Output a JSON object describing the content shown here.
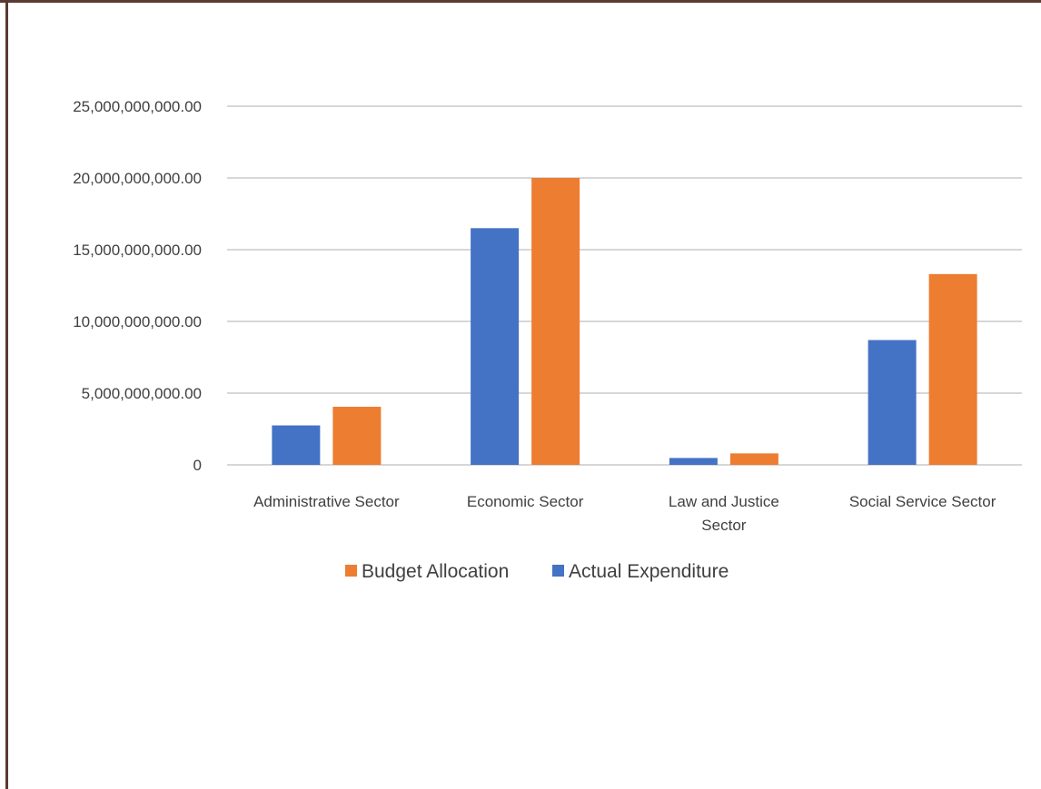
{
  "chart_data": {
    "type": "bar",
    "categories": [
      "Administrative Sector",
      "Economic Sector",
      "Law and Justice Sector",
      "Social Service Sector"
    ],
    "category_lines": [
      [
        "Administrative Sector"
      ],
      [
        "Economic Sector"
      ],
      [
        "Law and Justice",
        "Sector"
      ],
      [
        "Social Service Sector"
      ]
    ],
    "series": [
      {
        "name": "Actual Expenditure",
        "color": "#4472c4",
        "values": [
          2750000000,
          16500000000,
          480000000,
          8700000000
        ]
      },
      {
        "name": "Budget Allocation",
        "color": "#ed7d31",
        "values": [
          4050000000,
          20000000000,
          800000000,
          13300000000
        ]
      }
    ],
    "legend_order": [
      "Budget Allocation",
      "Actual Expenditure"
    ],
    "legend_position": "bottom",
    "ylim": [
      0,
      25000000000
    ],
    "yticks": [
      0,
      5000000000,
      10000000000,
      15000000000,
      20000000000,
      25000000000
    ],
    "ytick_labels": [
      "0",
      "5,000,000,000.00",
      "10,000,000,000.00",
      "15,000,000,000.00",
      "20,000,000,000.00",
      "25,000,000,000.00"
    ],
    "grid": true,
    "title": "",
    "xlabel": "",
    "ylabel": "",
    "frame_color": "#5a3a33",
    "gridline_color": "#bfbfbf"
  }
}
